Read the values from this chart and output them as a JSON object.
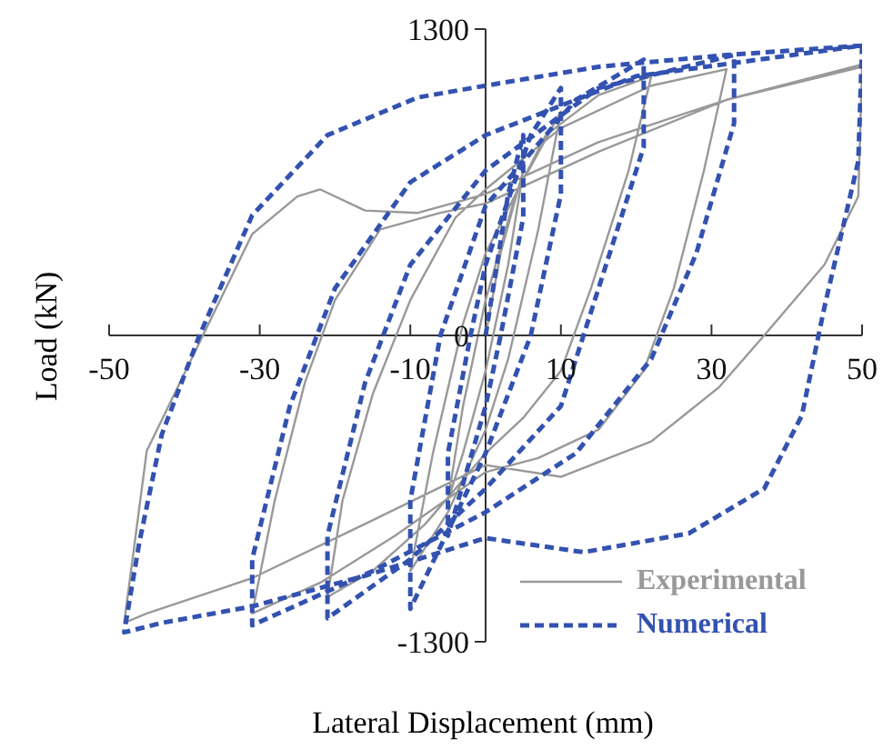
{
  "chart_data": {
    "type": "line",
    "xlabel": "Lateral Displacement (mm)",
    "ylabel": "Load (kN)",
    "xlim": [
      -50,
      50
    ],
    "ylim": [
      -1300,
      1300
    ],
    "xticks": [
      -50,
      -30,
      -10,
      10,
      30,
      50
    ],
    "yticks": [
      -1300,
      0,
      1300
    ],
    "legend": "bottom right",
    "grid": false,
    "series": [
      {
        "name": "Experimental",
        "color": "#999999",
        "line_style": "solid",
        "x": [
          0,
          2,
          5,
          3,
          0,
          -3,
          -5,
          -3,
          0,
          4,
          10,
          7,
          3,
          0,
          -5,
          -10,
          -7,
          -3,
          0,
          8,
          15,
          22,
          19,
          14,
          10,
          5,
          0,
          -8,
          -15,
          -21,
          -19,
          -15,
          -10,
          -4,
          0,
          10,
          22,
          32,
          29,
          25,
          21,
          15,
          7,
          0,
          -12,
          -22,
          -31,
          -28,
          -24,
          -20,
          -14,
          -6,
          0,
          15,
          32,
          50,
          49.5,
          45,
          37,
          31,
          22,
          10,
          0,
          -16,
          -31,
          -45,
          -48,
          -45,
          -38,
          -31,
          -25,
          -22,
          -16,
          -9,
          0,
          15,
          32,
          50
        ],
        "values": [
          0,
          350,
          700,
          300,
          -150,
          -500,
          -700,
          -300,
          150,
          600,
          950,
          450,
          -100,
          -400,
          -750,
          -1000,
          -500,
          50,
          350,
          850,
          1020,
          1100,
          700,
          200,
          -150,
          -350,
          -500,
          -800,
          -1000,
          -1110,
          -700,
          -250,
          150,
          500,
          620,
          880,
          1060,
          1130,
          700,
          200,
          -150,
          -400,
          -520,
          -580,
          -850,
          -1050,
          -1180,
          -700,
          -200,
          150,
          450,
          520,
          560,
          780,
          1000,
          1140,
          590,
          300,
          0,
          -220,
          -450,
          -600,
          -550,
          -800,
          -1030,
          -1180,
          -1220,
          -490,
          -30,
          430,
          590,
          620,
          530,
          520,
          600,
          820,
          1000,
          1150
        ]
      },
      {
        "name": "Numerical",
        "color": "#3352b0",
        "line_style": "dashed",
        "x": [
          0,
          3,
          5,
          5,
          2,
          0,
          -5,
          -5,
          -2,
          0,
          6,
          10,
          10,
          6,
          0,
          -10,
          -10,
          -6,
          0,
          12,
          21,
          21,
          15,
          10,
          0,
          -10,
          -21,
          -21,
          -16,
          -10,
          0,
          15,
          33,
          33,
          28,
          22,
          12,
          0,
          -15,
          -31,
          -31,
          -26,
          -20,
          -10,
          0,
          20,
          50,
          49.5,
          45,
          42,
          37,
          27,
          13,
          0,
          -16,
          -31,
          -43,
          -48,
          -46,
          -43,
          -38,
          -31,
          -21,
          -9,
          0,
          15,
          32,
          50
        ],
        "values": [
          0,
          600,
          850,
          500,
          0,
          -300,
          -850,
          -500,
          0,
          300,
          850,
          1050,
          600,
          0,
          -500,
          -1160,
          -700,
          0,
          550,
          1000,
          1170,
          800,
          200,
          -300,
          -650,
          -950,
          -1200,
          -850,
          -200,
          300,
          700,
          1050,
          1190,
          900,
          350,
          -100,
          -500,
          -750,
          -1000,
          -1230,
          -950,
          -300,
          200,
          650,
          850,
          1100,
          1230,
          740,
          120,
          -340,
          -650,
          -840,
          -920,
          -860,
          -1020,
          -1150,
          -1220,
          -1260,
          -880,
          -420,
          0,
          510,
          850,
          1010,
          1060,
          1140,
          1190,
          1230
        ]
      }
    ]
  }
}
